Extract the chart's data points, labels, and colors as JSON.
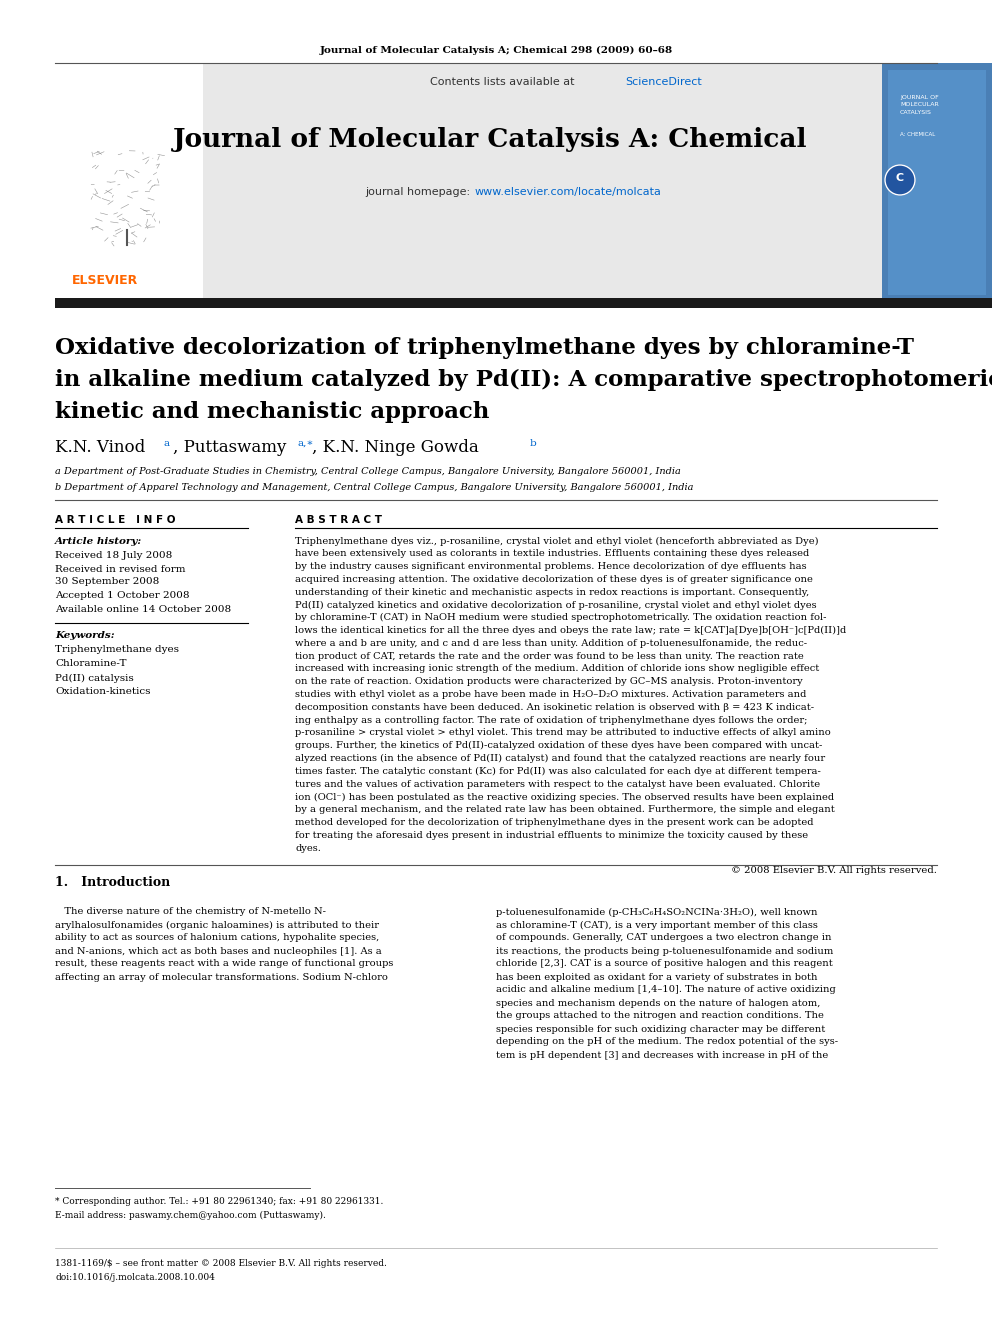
{
  "page_header": "Journal of Molecular Catalysis A; Chemical 298 (2009) 60–68",
  "journal_name": "Journal of Molecular Catalysis A: Chemical",
  "contents_line": "Contents lists available at ScienceDirect",
  "sciencedirect_color": "#0066cc",
  "homepage_label": "journal homepage: ",
  "homepage_url": "www.elsevier.com/locate/molcata",
  "elsevier_color": "#ff6600",
  "dark_bar_color": "#1a1a1a",
  "header_bg_color": "#e8e8e8",
  "article_title_line1": "Oxidative decolorization of triphenylmethane dyes by chloramine-T",
  "article_title_line2": "in alkaline medium catalyzed by Pd(II): A comparative spectrophotomeric",
  "article_title_line3": "kinetic and mechanistic approach",
  "affil_a": "a Department of Post-Graduate Studies in Chemistry, Central College Campus, Bangalore University, Bangalore 560001, India",
  "affil_b": "b Department of Apparel Technology and Management, Central College Campus, Bangalore University, Bangalore 560001, India",
  "article_info_title": "ARTICLE INFO",
  "article_history_label": "Article history:",
  "received": "Received 18 July 2008",
  "received_revised1": "Received in revised form",
  "received_revised2": "30 September 2008",
  "accepted": "Accepted 1 October 2008",
  "available": "Available online 14 October 2008",
  "keywords_label": "Keywords:",
  "keywords": [
    "Triphenylmethane dyes",
    "Chloramine-T",
    "Pd(II) catalysis",
    "Oxidation-kinetics"
  ],
  "abstract_title": "ABSTRACT",
  "abstract_lines": [
    "Triphenylmethane dyes viz., p-rosaniline, crystal violet and ethyl violet (henceforth abbreviated as Dye)",
    "have been extensively used as colorants in textile industries. Effluents containing these dyes released",
    "by the industry causes significant environmental problems. Hence decolorization of dye effluents has",
    "acquired increasing attention. The oxidative decolorization of these dyes is of greater significance one",
    "understanding of their kinetic and mechanistic aspects in redox reactions is important. Consequently,",
    "Pd(II) catalyzed kinetics and oxidative decolorization of p-rosaniline, crystal violet and ethyl violet dyes",
    "by chloramine-T (CAT) in NaOH medium were studied spectrophotometrically. The oxidation reaction fol-",
    "lows the identical kinetics for all the three dyes and obeys the rate law; rate = k[CAT]a[Dye]b[OH⁻]c[Pd(II)]d",
    "where a and b are unity, and c and d are less than unity. Addition of p-toluenesulfonamide, the reduc-",
    "tion product of CAT, retards the rate and the order was found to be less than unity. The reaction rate",
    "increased with increasing ionic strength of the medium. Addition of chloride ions show negligible effect",
    "on the rate of reaction. Oxidation products were characterized by GC–MS analysis. Proton-inventory",
    "studies with ethyl violet as a probe have been made in H₂O–D₂O mixtures. Activation parameters and",
    "decomposition constants have been deduced. An isokinetic relation is observed with β = 423 K indicat-",
    "ing enthalpy as a controlling factor. The rate of oxidation of triphenylmethane dyes follows the order;",
    "p-rosaniline > crystal violet > ethyl violet. This trend may be attributed to inductive effects of alkyl amino",
    "groups. Further, the kinetics of Pd(II)-catalyzed oxidation of these dyes have been compared with uncat-",
    "alyzed reactions (in the absence of Pd(II) catalyst) and found that the catalyzed reactions are nearly four",
    "times faster. The catalytic constant (Kᴄ) for Pd(II) was also calculated for each dye at different tempera-",
    "tures and the values of activation parameters with respect to the catalyst have been evaluated. Chlorite",
    "ion (OCl⁻) has been postulated as the reactive oxidizing species. The observed results have been explained",
    "by a general mechanism, and the related rate law has been obtained. Furthermore, the simple and elegant",
    "method developed for the decolorization of triphenylmethane dyes in the present work can be adopted",
    "for treating the aforesaid dyes present in industrial effluents to minimize the toxicity caused by these",
    "dyes."
  ],
  "copyright": "© 2008 Elsevier B.V. All rights reserved.",
  "intro_title": "1.   Introduction",
  "intro_col1_lines": [
    "   The diverse nature of the chemistry of N-metello N-",
    "arylhalosulfonamides (organic haloamines) is attributed to their",
    "ability to act as sources of halonium cations, hypohalite species,",
    "and N-anions, which act as both bases and nucleophiles [1]. As a",
    "result, these reagents react with a wide range of functional groups",
    "affecting an array of molecular transformations. Sodium N-chloro"
  ],
  "intro_col2_lines": [
    "p-toluenesulfonamide (p-CH₃C₆H₄SO₂NCINa·3H₂O), well known",
    "as chloramine-T (CAT), is a very important member of this class",
    "of compounds. Generally, CAT undergoes a two electron change in",
    "its reactions, the products being p-toluenesulfonamide and sodium",
    "chloride [2,3]. CAT is a source of positive halogen and this reagent",
    "has been exploited as oxidant for a variety of substrates in both",
    "acidic and alkaline medium [1,4–10]. The nature of active oxidizing",
    "species and mechanism depends on the nature of halogen atom,",
    "the groups attached to the nitrogen and reaction conditions. The",
    "species responsible for such oxidizing character may be different",
    "depending on the pH of the medium. The redox potential of the sys-",
    "tem is pH dependent [3] and decreases with increase in pH of the"
  ],
  "footnote_line1": "* Corresponding author. Tel.: +91 80 22961340; fax: +91 80 22961331.",
  "footnote_line2": "  E-mail address: paswamy.chem@yahoo.com (Puttaswamy).",
  "footer_issn": "1381-1169/$ – see front matter © 2008 Elsevier B.V. All rights reserved.",
  "footer_doi": "doi:10.1016/j.molcata.2008.10.004",
  "bg_color": "#ffffff",
  "text_color": "#000000",
  "link_color": "#0066cc"
}
